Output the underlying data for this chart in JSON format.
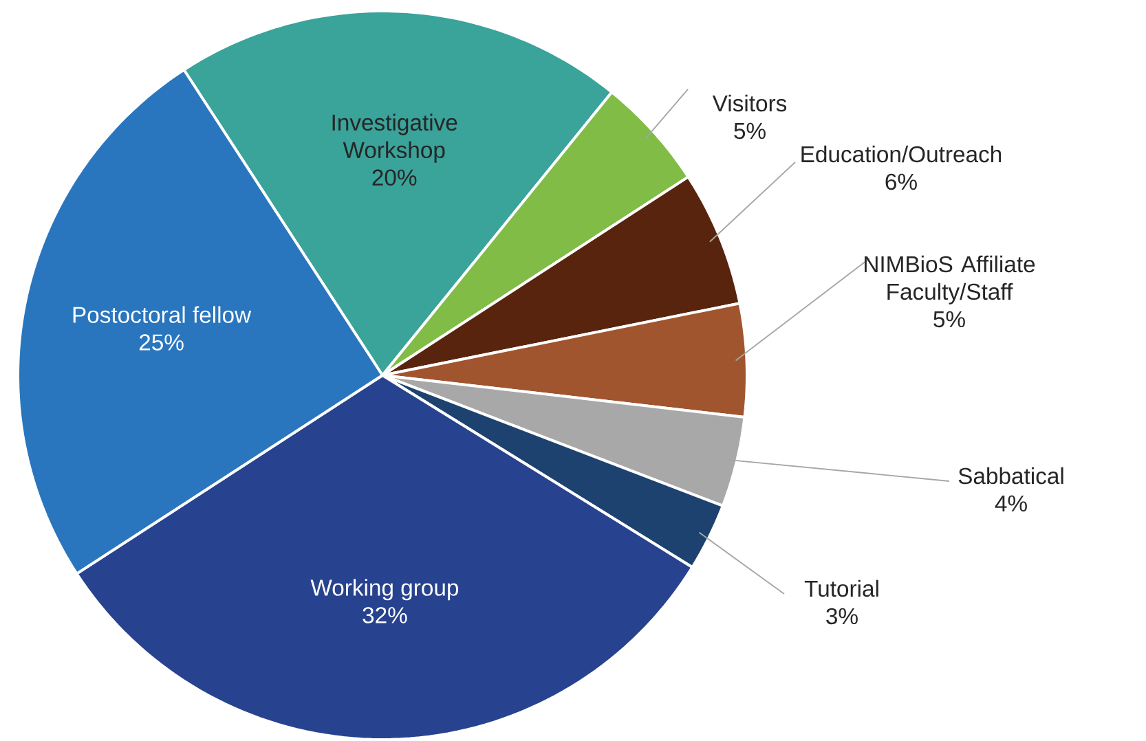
{
  "chart_data": {
    "type": "pie",
    "categories": [
      "Investigative Workshop",
      "Visitors",
      "Education/Outreach",
      "NIMBioS Affiliate Faculty/Staff",
      "Sabbatical",
      "Tutorial",
      "Working group",
      "Postoctoral fellow"
    ],
    "values": [
      20,
      5,
      6,
      5,
      4,
      3,
      32,
      25
    ],
    "value_labels": [
      "20%",
      "5%",
      "6%",
      "5%",
      "4%",
      "3%",
      "32%",
      "25%"
    ],
    "colors": [
      "#3aa39a",
      "#80bc46",
      "#58240e",
      "#a0552f",
      "#a9a8a8",
      "#1d4270",
      "#27438f",
      "#2a76be"
    ]
  }
}
